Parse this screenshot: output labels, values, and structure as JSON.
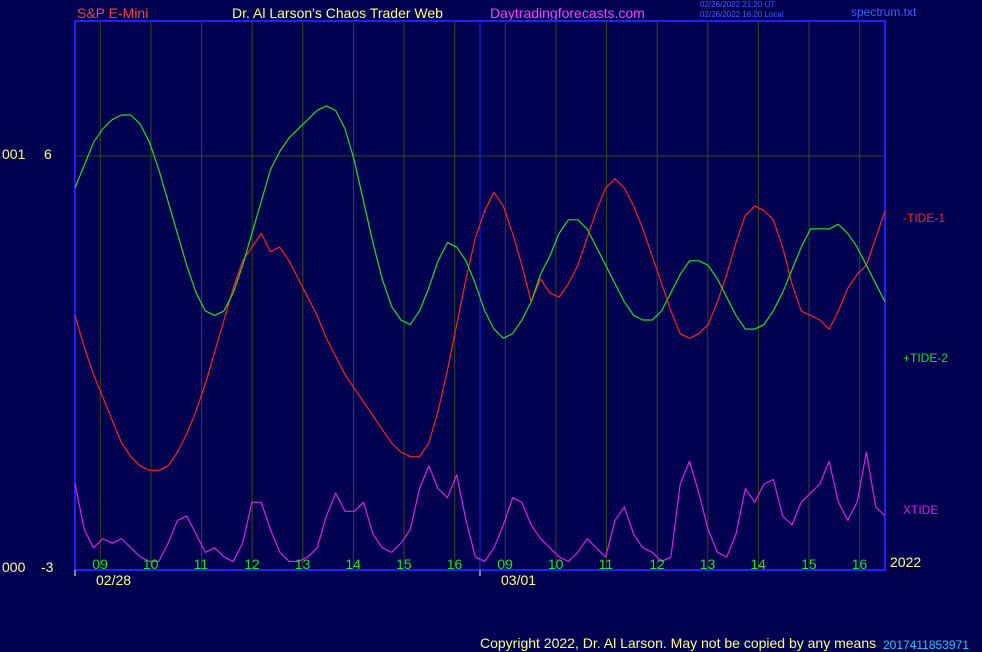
{
  "header": {
    "instrument": "S&P E-Mini",
    "title": "Dr. Al Larson's Chaos Trader Web",
    "site": "Daytradingforecasts.com",
    "timestamp_ut": "02/26/2022 21:20 UT",
    "timestamp_local": "02/26/2022 16:20 Local",
    "file": "spectrum.txt"
  },
  "footer": {
    "copyright": "Copyright 2022, Dr. Al Larson. May not be copied by any means",
    "overlap_text": "2017411853971"
  },
  "colors": {
    "background": "#000050",
    "frame": "#2020ff",
    "tide1": "#ff2020",
    "tide2": "#20e020",
    "xtide": "#e020e0",
    "label": "#ffff80",
    "hour_label": "#20e020",
    "date_label": "#ffff80",
    "title": "#ffff80",
    "instrument": "#ff4040",
    "site": "#ff40ff",
    "copyright": "#ffff80"
  },
  "chart_data": {
    "type": "line",
    "y_axis": {
      "top_label_left": "001",
      "top_value": "6",
      "bottom_label_left": "000",
      "bottom_value": "-3"
    },
    "x_axis": {
      "hour_ticks": [
        "09",
        "10",
        "11",
        "12",
        "13",
        "14",
        "15",
        "16",
        "09",
        "10",
        "11",
        "12",
        "13",
        "14",
        "15",
        "16"
      ],
      "date_labels": [
        "02/28",
        "03/01"
      ],
      "year": "2022"
    },
    "series": [
      {
        "name": "-TIDE-1",
        "values": [
          2.5,
          1.8,
          1.2,
          0.7,
          0.2,
          -0.3,
          -0.6,
          -0.8,
          -0.9,
          -0.9,
          -0.8,
          -0.5,
          -0.1,
          0.4,
          1.0,
          1.7,
          2.4,
          3.1,
          3.7,
          4.0,
          4.3,
          3.9,
          4.0,
          3.7,
          3.3,
          2.9,
          2.5,
          2.0,
          1.6,
          1.2,
          0.9,
          0.6,
          0.3,
          0.0,
          -0.3,
          -0.5,
          -0.6,
          -0.6,
          -0.3,
          0.4,
          1.3,
          2.3,
          3.3,
          4.2,
          4.8,
          5.2,
          4.9,
          4.3,
          3.6,
          2.8,
          3.3,
          3.0,
          2.9,
          3.2,
          3.6,
          4.2,
          4.8,
          5.3,
          5.5,
          5.3,
          4.9,
          4.4,
          3.8,
          3.2,
          2.6,
          2.1,
          2.0,
          2.1,
          2.3,
          2.8,
          3.4,
          4.1,
          4.7,
          4.9,
          4.8,
          4.6,
          4.0,
          3.2,
          2.6,
          2.5,
          2.4,
          2.2,
          2.6,
          3.1,
          3.4,
          3.6,
          4.2,
          4.8
        ]
      },
      {
        "name": "+TIDE-2",
        "values": [
          5.3,
          5.8,
          6.3,
          6.6,
          6.8,
          6.9,
          6.9,
          6.7,
          6.3,
          5.7,
          5.0,
          4.3,
          3.6,
          3.0,
          2.6,
          2.5,
          2.6,
          3.0,
          3.6,
          4.3,
          5.0,
          5.7,
          6.1,
          6.4,
          6.6,
          6.8,
          7.0,
          7.1,
          7.0,
          6.6,
          5.9,
          5.0,
          4.1,
          3.3,
          2.7,
          2.4,
          2.3,
          2.6,
          3.1,
          3.7,
          4.1,
          4.0,
          3.7,
          3.2,
          2.6,
          2.2,
          2.0,
          2.1,
          2.4,
          2.8,
          3.4,
          3.8,
          4.3,
          4.6,
          4.6,
          4.4,
          4.0,
          3.6,
          3.2,
          2.8,
          2.5,
          2.4,
          2.4,
          2.6,
          3.0,
          3.4,
          3.7,
          3.7,
          3.6,
          3.3,
          2.9,
          2.5,
          2.2,
          2.2,
          2.3,
          2.6,
          3.0,
          3.5,
          4.0,
          4.4,
          4.4,
          4.4,
          4.5,
          4.3,
          4.0,
          3.6,
          3.2,
          2.8
        ]
      },
      {
        "name": "XTIDE",
        "values": [
          -1.2,
          -2.2,
          -2.6,
          -2.4,
          -2.5,
          -2.4,
          -2.6,
          -2.8,
          -2.9,
          -2.9,
          -2.5,
          -2.0,
          -1.9,
          -2.3,
          -2.7,
          -2.6,
          -2.8,
          -2.9,
          -2.5,
          -1.6,
          -1.6,
          -2.2,
          -2.7,
          -2.9,
          -2.9,
          -2.8,
          -2.6,
          -1.9,
          -1.4,
          -1.8,
          -1.8,
          -1.6,
          -2.3,
          -2.6,
          -2.7,
          -2.5,
          -2.2,
          -1.3,
          -0.8,
          -1.3,
          -1.5,
          -1.0,
          -2.0,
          -2.8,
          -2.9,
          -2.6,
          -2.1,
          -1.5,
          -1.6,
          -2.1,
          -2.4,
          -2.6,
          -2.8,
          -2.9,
          -2.7,
          -2.4,
          -2.6,
          -2.8,
          -2.0,
          -1.7,
          -2.3,
          -2.6,
          -2.7,
          -2.9,
          -2.8,
          -1.2,
          -0.7,
          -1.4,
          -2.2,
          -2.7,
          -2.8,
          -2.3,
          -1.3,
          -1.6,
          -1.2,
          -1.1,
          -1.9,
          -2.1,
          -1.6,
          -1.4,
          -1.2,
          -0.7,
          -1.6,
          -2.0,
          -1.6,
          -0.5,
          -1.7,
          -1.9
        ]
      }
    ]
  }
}
